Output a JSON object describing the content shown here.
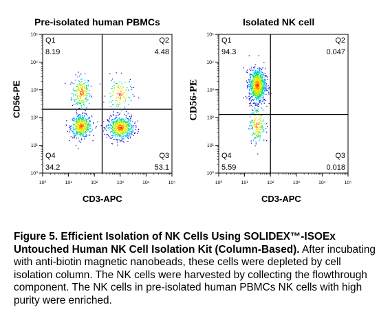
{
  "chart_data": [
    {
      "type": "scatter",
      "title": "Pre-isolated human PBMCs",
      "xlabel": "CD3-APC",
      "ylabel": "CD56-PE",
      "xscale": "log",
      "yscale": "log",
      "xlim": [
        1,
        100000
      ],
      "ylim": [
        1,
        100000
      ],
      "x_ticks": [
        "10⁰",
        "10¹",
        "10²",
        "10³",
        "10⁴",
        "10⁵"
      ],
      "y_ticks": [
        "10⁰",
        "10¹",
        "10²",
        "10³",
        "10⁴",
        "10⁵"
      ],
      "gate": {
        "x": 200,
        "y": 200
      },
      "quadrants": [
        {
          "name": "Q1",
          "value": "8.19"
        },
        {
          "name": "Q2",
          "value": "4.48"
        },
        {
          "name": "Q3",
          "value": "53.1"
        },
        {
          "name": "Q4",
          "value": "34.2"
        }
      ],
      "populations": [
        {
          "x": 30,
          "y": 800,
          "n": 220,
          "sx": 0.18,
          "sy": 0.3
        },
        {
          "x": 30,
          "y": 50,
          "n": 480,
          "sx": 0.2,
          "sy": 0.2
        },
        {
          "x": 1000,
          "y": 45,
          "n": 600,
          "sx": 0.25,
          "sy": 0.2
        },
        {
          "x": 900,
          "y": 700,
          "n": 120,
          "sx": 0.25,
          "sy": 0.3
        }
      ]
    },
    {
      "type": "scatter",
      "title": "Isolated NK cell",
      "xlabel": "CD3-APC",
      "ylabel": "CD56-PE",
      "xscale": "log",
      "yscale": "log",
      "xlim": [
        1,
        100000
      ],
      "ylim": [
        1,
        100000
      ],
      "x_ticks": [
        "10⁰",
        "10¹",
        "10²",
        "10³",
        "10⁴",
        "10⁵"
      ],
      "y_ticks": [
        "10⁰",
        "10¹",
        "10²",
        "10³",
        "10⁴",
        "10⁵"
      ],
      "gate": {
        "x": 100,
        "y": 130
      },
      "quadrants": [
        {
          "name": "Q1",
          "value": "94.3"
        },
        {
          "name": "Q2",
          "value": "0.047"
        },
        {
          "name": "Q3",
          "value": "0.018"
        },
        {
          "name": "Q4",
          "value": "5.59"
        }
      ],
      "populations": [
        {
          "x": 30,
          "y": 1500,
          "n": 900,
          "sx": 0.16,
          "sy": 0.3
        },
        {
          "x": 30,
          "y": 60,
          "n": 180,
          "sx": 0.15,
          "sy": 0.35
        }
      ]
    }
  ],
  "caption": {
    "bold": "Figure 5. Efficient Isolation of NK Cells Using SOLIDEX™-ISOEx Untouched Human NK Cell Isolation Kit (Column-Based).",
    "text": "  After incubating with anti-biotin magnetic nanobeads, these cells were depleted by cell isolation column. The NK cells were harvested by collecting the flowthrough component. The NK cells in pre-isolated human PBMCs  NK cells with high purity were enriched."
  }
}
